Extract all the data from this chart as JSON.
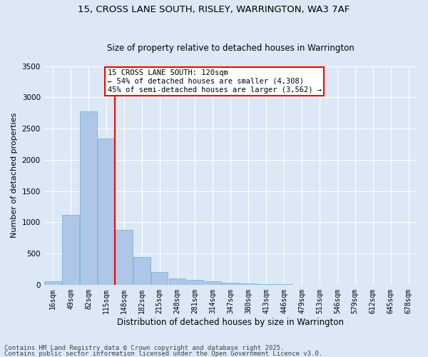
{
  "title1": "15, CROSS LANE SOUTH, RISLEY, WARRINGTON, WA3 7AF",
  "title2": "Size of property relative to detached houses in Warrington",
  "xlabel": "Distribution of detached houses by size in Warrington",
  "ylabel": "Number of detached properties",
  "categories": [
    "16sqm",
    "49sqm",
    "82sqm",
    "115sqm",
    "148sqm",
    "182sqm",
    "215sqm",
    "248sqm",
    "281sqm",
    "314sqm",
    "347sqm",
    "380sqm",
    "413sqm",
    "446sqm",
    "479sqm",
    "513sqm",
    "546sqm",
    "579sqm",
    "612sqm",
    "645sqm",
    "678sqm"
  ],
  "values": [
    50,
    1120,
    2780,
    2340,
    880,
    440,
    200,
    100,
    75,
    55,
    30,
    20,
    12,
    5,
    3,
    2,
    1,
    1,
    0,
    0,
    0
  ],
  "bar_color": "#aec6e8",
  "bar_edge_color": "#6aaed6",
  "vline_index": 3,
  "vline_color": "red",
  "annotation_text": "15 CROSS LANE SOUTH: 120sqm\n← 54% of detached houses are smaller (4,308)\n45% of semi-detached houses are larger (3,562) →",
  "annotation_box_color": "white",
  "annotation_box_edge": "red",
  "ylim": [
    0,
    3500
  ],
  "yticks": [
    0,
    500,
    1000,
    1500,
    2000,
    2500,
    3000,
    3500
  ],
  "bg_color": "#dce8f5",
  "grid_color": "white",
  "footer1": "Contains HM Land Registry data © Crown copyright and database right 2025.",
  "footer2": "Contains public sector information licensed under the Open Government Licence v3.0.",
  "title1_fontsize": 9.5,
  "title2_fontsize": 8.5,
  "annotation_fontsize": 7.5,
  "ylabel_fontsize": 8,
  "xlabel_fontsize": 8.5,
  "tick_fontsize": 7,
  "ytick_fontsize": 7.5,
  "footer_fontsize": 6.5
}
